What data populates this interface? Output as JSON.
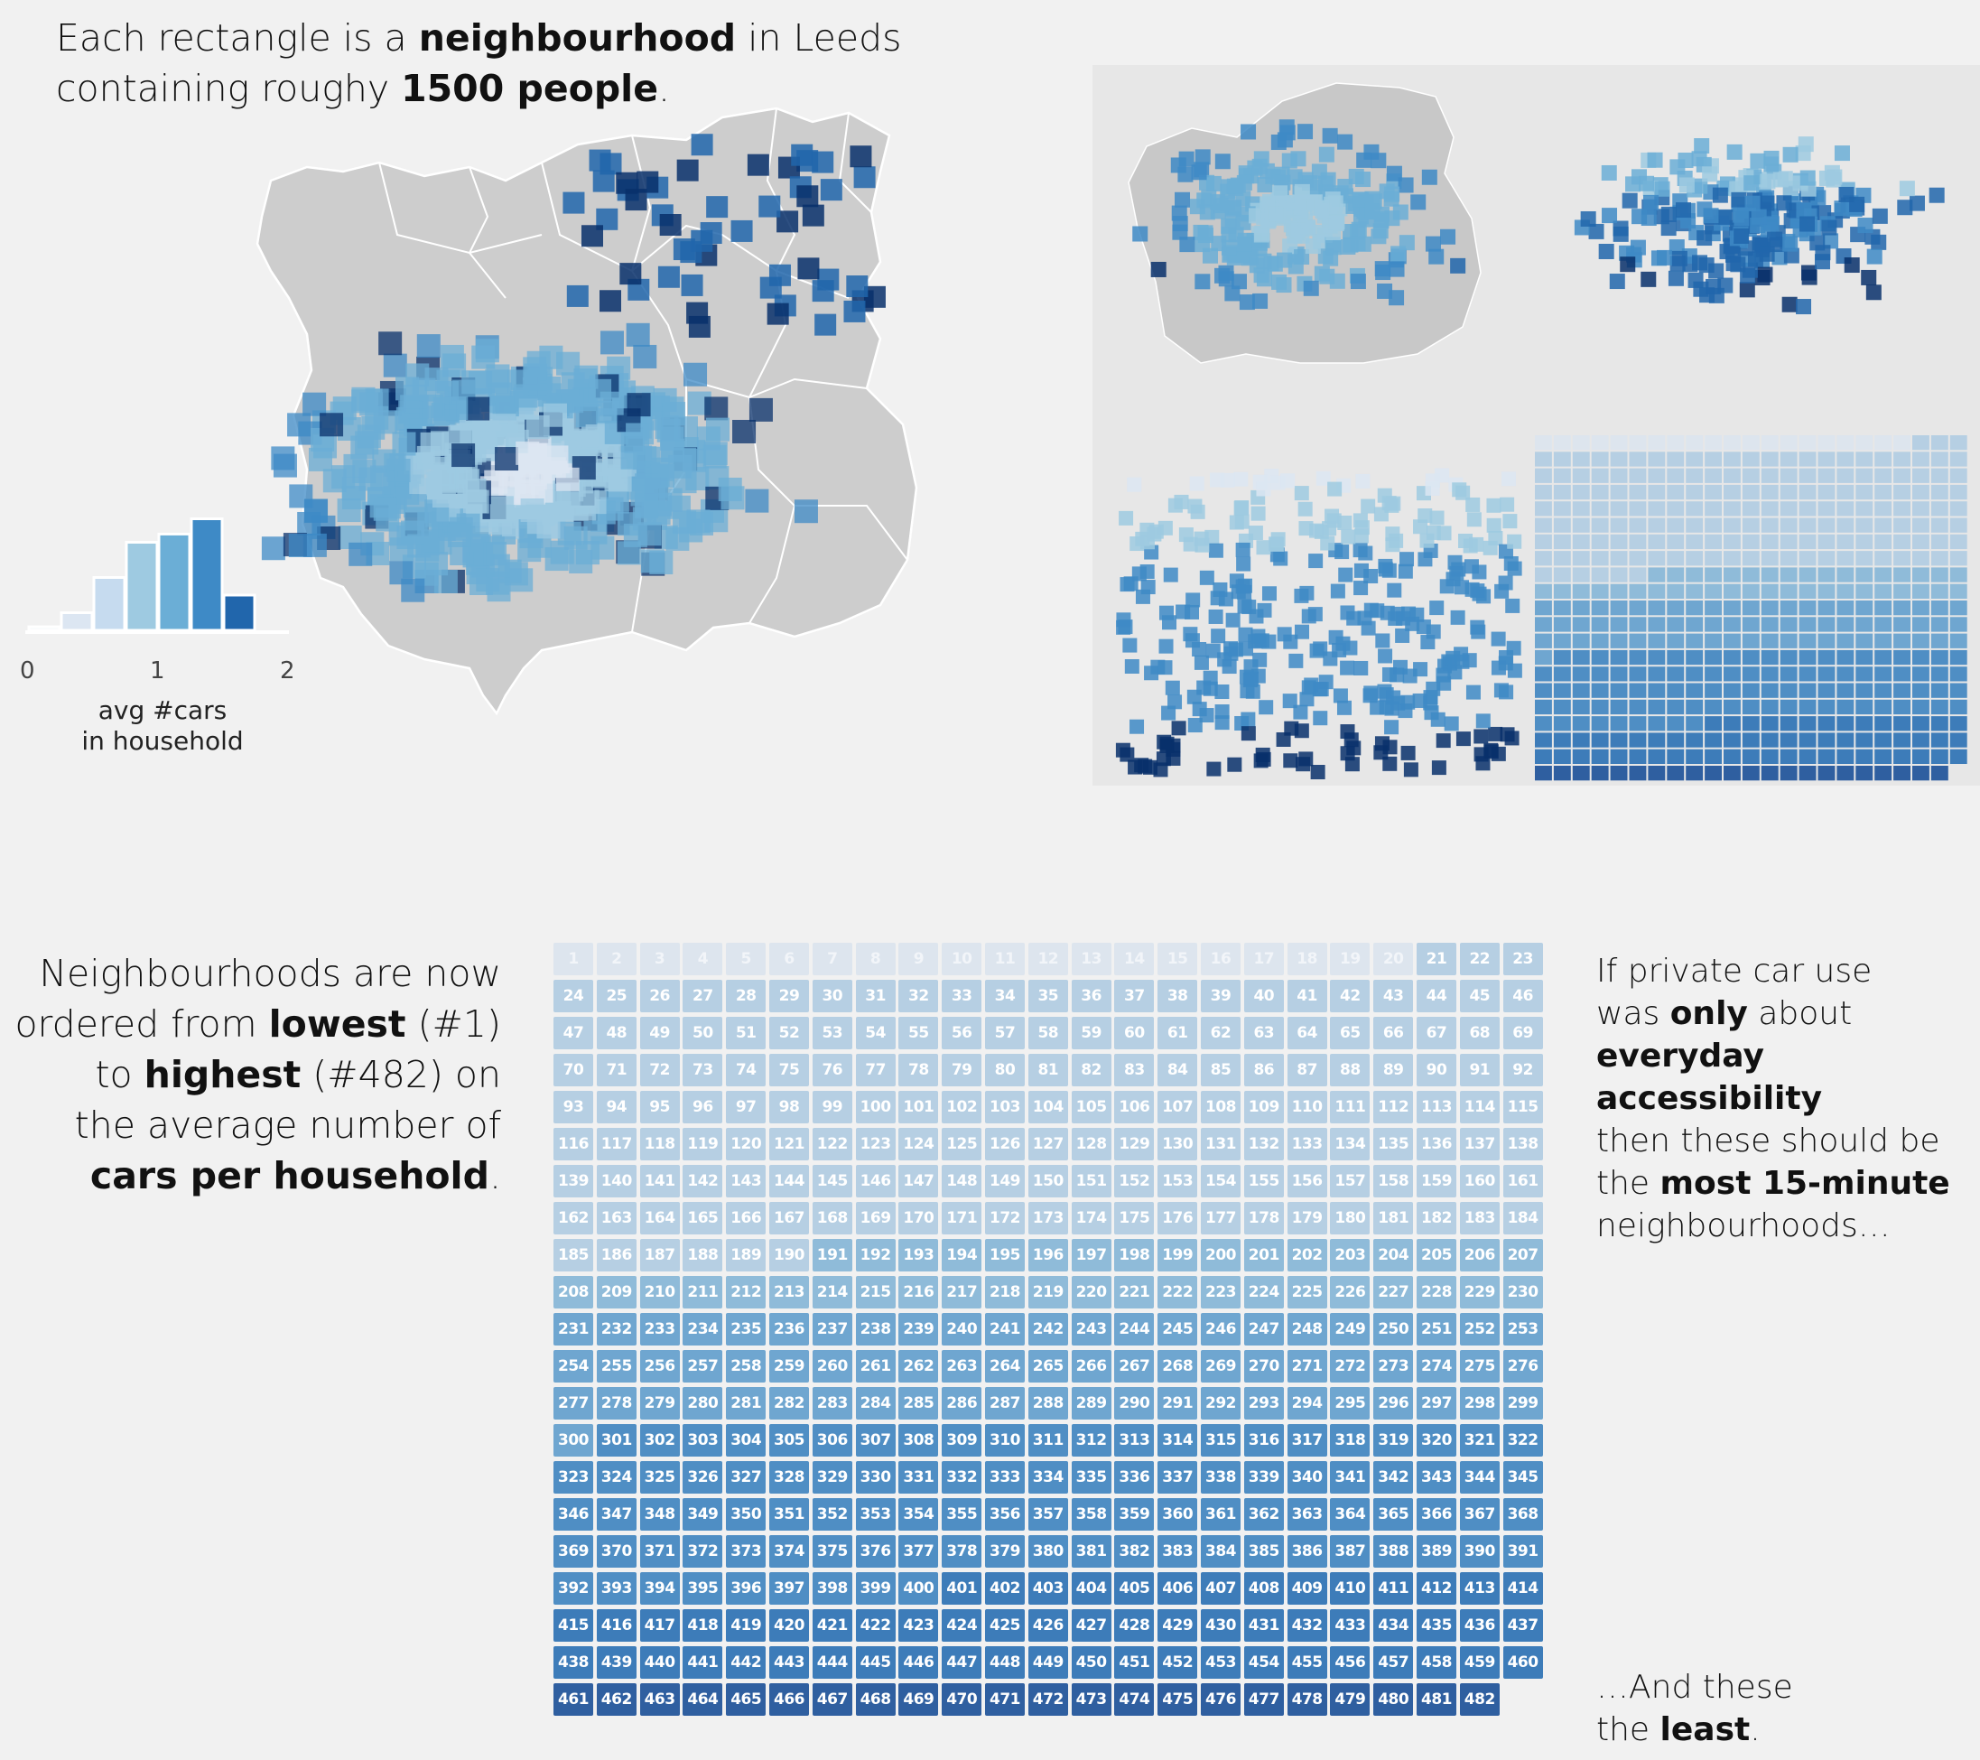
{
  "intro": {
    "line1_a": "Each rectangle is a ",
    "line1_b": "neighbourhood",
    "line1_c": " in Leeds",
    "line2_a": "containing roughy ",
    "line2_b": "1500 people",
    "line2_c": "."
  },
  "legend": {
    "tick_0": "0",
    "tick_1": "1",
    "tick_2": "2",
    "label_line1": "avg #cars",
    "label_line2": "in household",
    "histogram_bin_levels": [
      0.03,
      0.15,
      0.45,
      0.75,
      0.82,
      0.95,
      0.3
    ]
  },
  "ordered_text": {
    "l1": "Neighbourhoods are now",
    "l2_a": "ordered from ",
    "l2_b": "lowest",
    "l2_c": " (#1)",
    "l3_a": "to ",
    "l3_b": "highest",
    "l3_c": " (#482) on",
    "l4": "the average number of",
    "l5_b": "cars per household",
    "l5_c": "."
  },
  "note_top": {
    "l1": "If private car use",
    "l2_a": "was ",
    "l2_b": "only",
    "l2_c": " about",
    "l3_b": "everyday accessibility",
    "l4": "then these should be",
    "l5_a": "the ",
    "l5_b": "most 15-minute",
    "l6": "neighbourhoods…"
  },
  "note_bottom": {
    "l1": "…And these",
    "l2_a": "the ",
    "l2_b": "least",
    "l2_c": "."
  },
  "ranked_grid": {
    "total": 482,
    "columns": 23,
    "colors": [
      "#dde5ee",
      "#b6cfe3",
      "#8fbbd9",
      "#6fa6d0",
      "#4f8ec4",
      "#3d7cb9",
      "#2f5fa0"
    ],
    "tier_breaks": [
      20,
      190,
      230,
      300,
      400,
      460
    ]
  },
  "colors": {
    "background": "#f1f1f1",
    "map_land": "#cdcdcd",
    "map_border": "#ffffff",
    "scale": [
      "#dce6f2",
      "#c6dbef",
      "#9ecae1",
      "#6baed6",
      "#3e8ac6",
      "#2166ac",
      "#08306b"
    ]
  }
}
